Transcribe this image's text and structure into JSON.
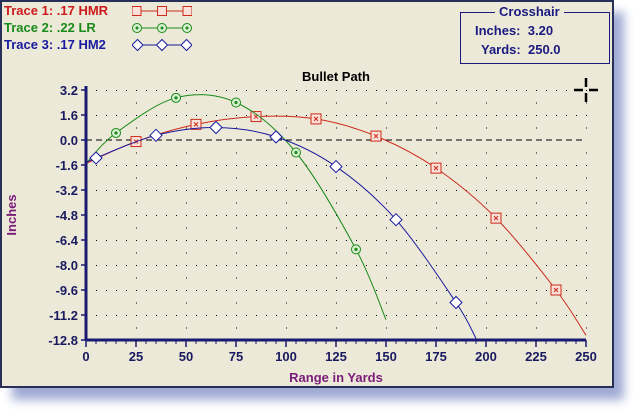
{
  "legend": [
    {
      "label": "Trace 1:  .17 HMR",
      "color": "#cc1a1a",
      "marker": "square-x"
    },
    {
      "label": "Trace 2:  .22 LR",
      "color": "#1a8a1a",
      "marker": "circle-dot"
    },
    {
      "label": "Trace 3:  .17 HM2",
      "color": "#1a1aa0",
      "marker": "diamond"
    }
  ],
  "crosshair": {
    "title": "Crosshair",
    "inches_label": "Inches:",
    "inches_value": "3.20",
    "yards_label": "Yards:",
    "yards_value": "250.0",
    "icon": "crosshair-icon"
  },
  "chart_data": {
    "type": "line",
    "title": "Bullet Path",
    "xlabel": "Range in Yards",
    "ylabel": "Inches",
    "xlim": [
      0,
      250
    ],
    "ylim": [
      -12.8,
      3.2
    ],
    "xticks": [
      "0",
      "25",
      "50",
      "75",
      "100",
      "125",
      "150",
      "175",
      "200",
      "225",
      "250"
    ],
    "yticks": [
      "3.2",
      "1.6",
      "0.0",
      "-1.6",
      "-3.2",
      "-4.8",
      "-6.4",
      "-8.0",
      "-9.6",
      "-11.2",
      "-12.8"
    ],
    "grid": "dotted",
    "zero_line": "dashed",
    "series": [
      {
        "name": ".17 HMR",
        "color": "#cc2a1a",
        "marker": "square-x",
        "x": [
          0,
          25,
          55,
          85,
          115,
          145,
          175,
          205,
          235,
          250
        ],
        "y": [
          -1.5,
          -0.1,
          1.0,
          1.5,
          1.35,
          0.25,
          -1.8,
          -5.0,
          -9.6,
          -12.5
        ]
      },
      {
        "name": ".22 LR",
        "color": "#1a8a1a",
        "marker": "circle-dot",
        "x": [
          0,
          15,
          45,
          75,
          105,
          135,
          150
        ],
        "y": [
          -1.5,
          0.45,
          2.7,
          2.4,
          -0.8,
          -7.0,
          -11.5
        ]
      },
      {
        "name": ".17 HM2",
        "color": "#1a1aa0",
        "marker": "diamond",
        "x": [
          0,
          5,
          35,
          65,
          95,
          125,
          155,
          185,
          195
        ],
        "y": [
          -1.5,
          -1.15,
          0.3,
          0.8,
          0.2,
          -1.7,
          -5.1,
          -10.4,
          -12.7
        ]
      }
    ]
  }
}
